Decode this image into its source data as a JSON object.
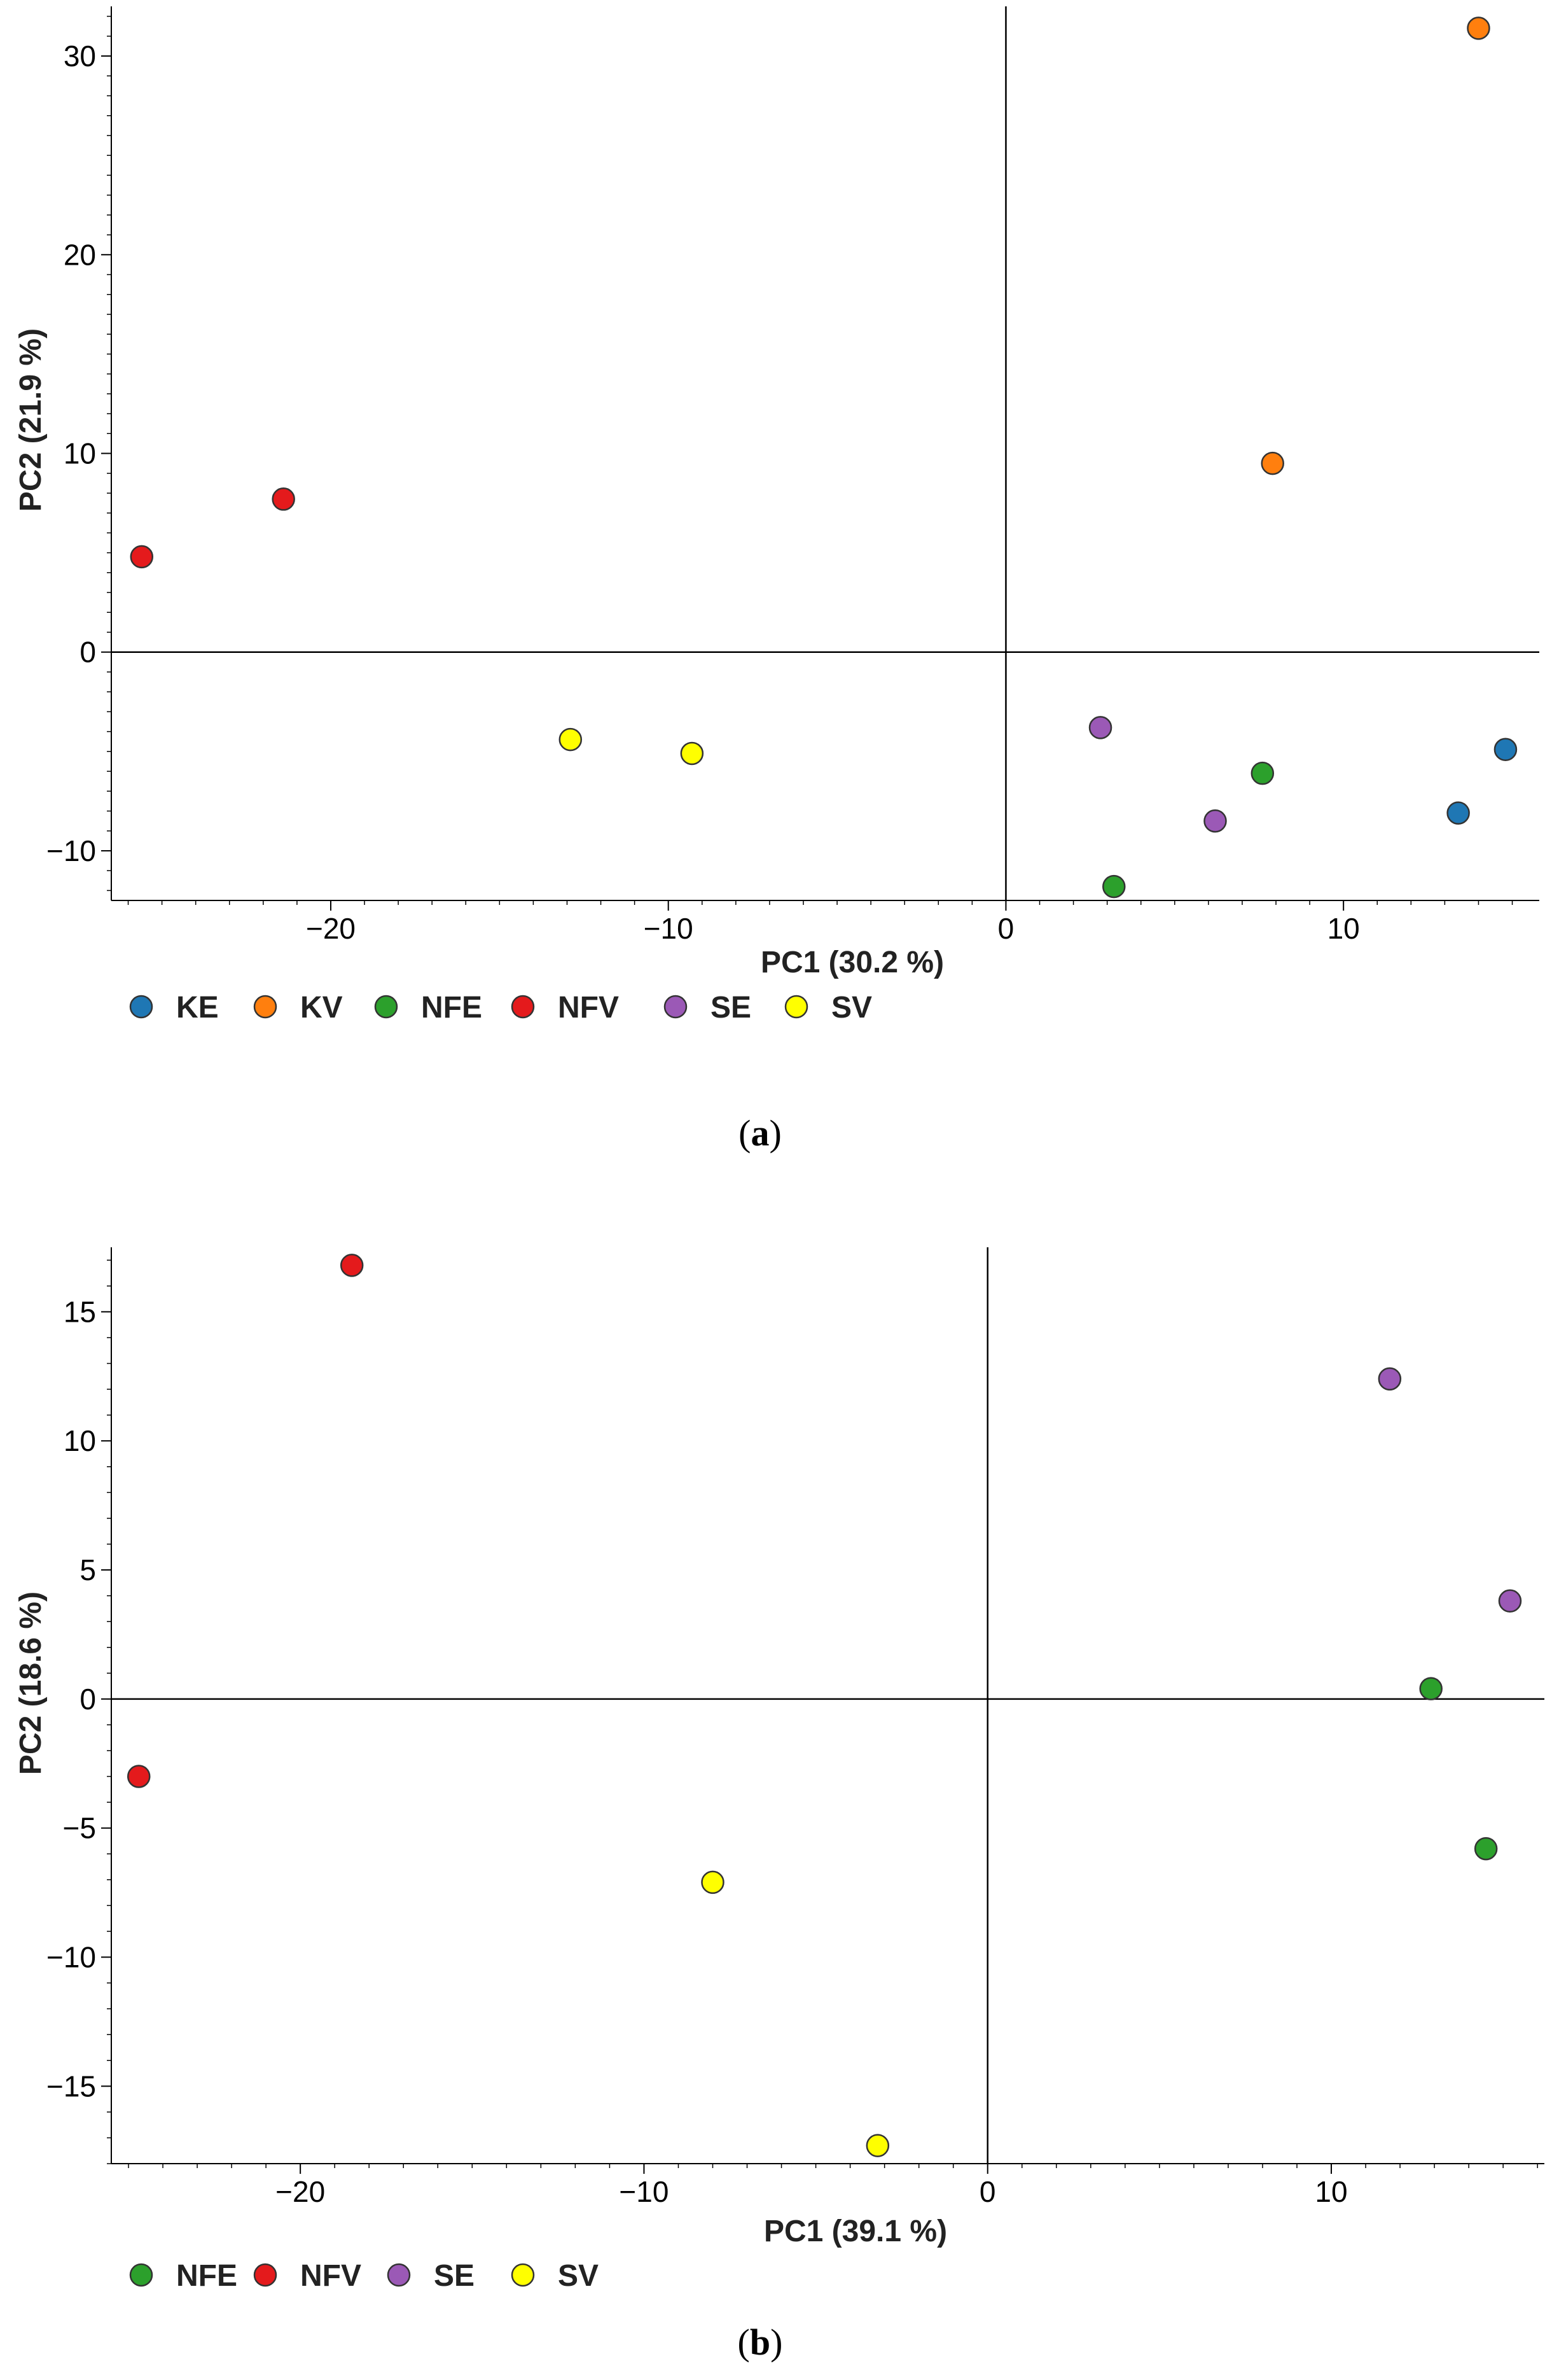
{
  "colors": {
    "KE": "#1f77b4",
    "KV": "#ff7f0e",
    "NFE": "#2ca02c",
    "NFV": "#e41a1c",
    "SE": "#9b59b6",
    "SV": "#ffff00"
  },
  "chart_data": [
    {
      "type": "scatter",
      "panel": "a",
      "caption": {
        "open": "(",
        "letter": "a",
        "close": ")"
      },
      "xlabel": "PC1 (30.2 %)",
      "ylabel": "PC2 (21.9 %)",
      "xlim": [
        -26.5,
        15.8
      ],
      "ylim": [
        -12.5,
        32.5
      ],
      "xticks": [
        -20,
        -10,
        0,
        10
      ],
      "xtick_labels": [
        "−20",
        "−10",
        "0",
        "10"
      ],
      "yticks": [
        -10,
        0,
        10,
        20,
        30
      ],
      "ytick_labels": [
        "−10",
        "0",
        "10",
        "20",
        "30"
      ],
      "zero_lines": true,
      "legend": [
        "KE",
        "KV",
        "NFE",
        "NFV",
        "SE",
        "SV"
      ],
      "legend_position": "bottom-left",
      "series": [
        {
          "name": "KE",
          "points": [
            [
              13.4,
              -8.1
            ],
            [
              14.8,
              -4.9
            ]
          ]
        },
        {
          "name": "KV",
          "points": [
            [
              7.9,
              9.5
            ],
            [
              14.0,
              31.4
            ]
          ]
        },
        {
          "name": "NFE",
          "points": [
            [
              7.6,
              -6.1
            ],
            [
              3.2,
              -11.8
            ]
          ]
        },
        {
          "name": "NFV",
          "points": [
            [
              -25.6,
              4.8
            ],
            [
              -21.4,
              7.7
            ]
          ]
        },
        {
          "name": "SE",
          "points": [
            [
              2.8,
              -3.8
            ],
            [
              6.2,
              -8.5
            ]
          ]
        },
        {
          "name": "SV",
          "points": [
            [
              -12.9,
              -4.4
            ],
            [
              -9.3,
              -5.1
            ]
          ]
        }
      ]
    },
    {
      "type": "scatter",
      "panel": "b",
      "caption": {
        "open": "(",
        "letter": "b",
        "close": ")"
      },
      "xlabel": "PC1 (39.1 %)",
      "ylabel": "PC2 (18.6 %)",
      "xlim": [
        -25.5,
        16.2
      ],
      "ylim": [
        -18,
        17.5
      ],
      "xticks": [
        -20,
        -10,
        0,
        10
      ],
      "xtick_labels": [
        "−20",
        "−10",
        "0",
        "10"
      ],
      "yticks": [
        -15,
        -10,
        -5,
        0,
        5,
        10,
        15
      ],
      "ytick_labels": [
        "−15",
        "−10",
        "−5",
        "0",
        "5",
        "10",
        "15"
      ],
      "zero_lines": true,
      "legend": [
        "NFE",
        "NFV",
        "SE",
        "SV"
      ],
      "legend_position": "bottom-left",
      "series": [
        {
          "name": "NFE",
          "points": [
            [
              12.9,
              0.4
            ],
            [
              14.5,
              -5.8
            ]
          ]
        },
        {
          "name": "NFV",
          "points": [
            [
              -24.7,
              -3.0
            ],
            [
              -18.5,
              16.8
            ]
          ]
        },
        {
          "name": "SE",
          "points": [
            [
              11.7,
              12.4
            ],
            [
              15.2,
              3.8
            ]
          ]
        },
        {
          "name": "SV",
          "points": [
            [
              -8.0,
              -7.1
            ],
            [
              -3.2,
              -17.3
            ]
          ]
        }
      ]
    }
  ]
}
